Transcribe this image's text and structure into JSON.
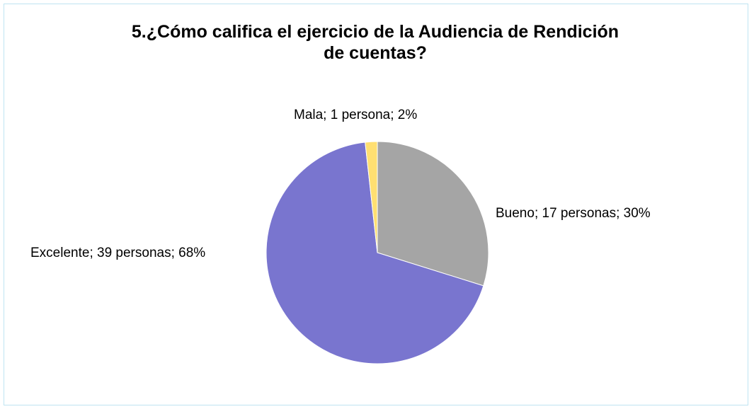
{
  "chart_data": {
    "type": "pie",
    "title_lines": [
      "5.¿Cómo califica el ejercicio de la Audiencia de Rendición",
      "de cuentas?"
    ],
    "legend": "none",
    "series": [
      {
        "values": [
          17,
          39,
          1
        ],
        "percent": [
          30,
          68,
          2
        ]
      }
    ],
    "categories": [
      "Bueno",
      "Excelente",
      "Mala"
    ],
    "slices": [
      {
        "category": "Bueno",
        "value": 17,
        "percent": 30,
        "label": "Bueno; 17 personas; 30%",
        "color": "#a5a5a5"
      },
      {
        "category": "Excelente",
        "value": 39,
        "percent": 68,
        "label": "Excelente; 39 personas; 68%",
        "color": "#7975cf"
      },
      {
        "category": "Mala",
        "value": 1,
        "percent": 2,
        "label": "Mala; 1 persona; 2%",
        "color": "#ffdf71"
      }
    ]
  }
}
